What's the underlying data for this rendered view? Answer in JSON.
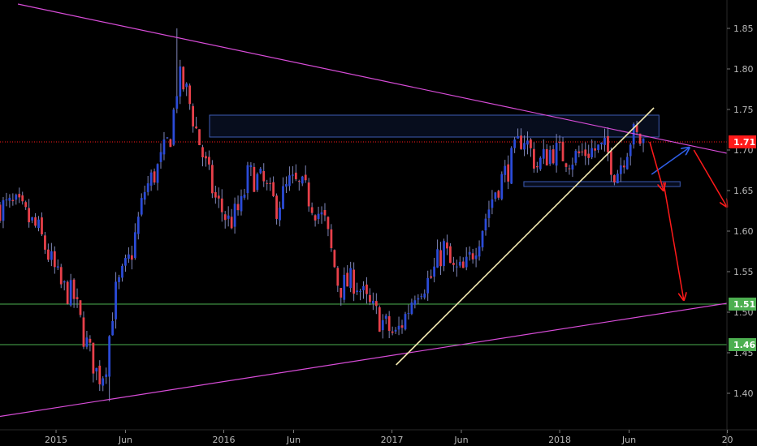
{
  "chart_data": {
    "type": "candlestick",
    "y_axis": {
      "min": 1.355,
      "max": 1.885,
      "ticks": [
        "1.85",
        "1.80",
        "1.75",
        "1.70",
        "1.65",
        "1.60",
        "1.55",
        "1.50",
        "1.45",
        "1.40"
      ],
      "side": "right"
    },
    "x_axis": {
      "start": "2014-09-01",
      "end": "2018-12-31",
      "ticks": [
        {
          "date": "2015-01-01",
          "label": "2015"
        },
        {
          "date": "2015-06-01",
          "label": "Jun"
        },
        {
          "date": "2016-01-01",
          "label": "2016"
        },
        {
          "date": "2016-06-01",
          "label": "Jun"
        },
        {
          "date": "2017-01-01",
          "label": "2017"
        },
        {
          "date": "2017-06-01",
          "label": "Jun"
        },
        {
          "date": "2018-01-01",
          "label": "2018"
        },
        {
          "date": "2018-06-01",
          "label": "Jun"
        },
        {
          "date": "2019-01-01",
          "label": "20"
        }
      ]
    },
    "colors": {
      "up": "#2b4bd8",
      "down": "#e8404a",
      "wick": "#7f86b8"
    },
    "price_path": [
      [
        "2014-09-01",
        1.63
      ],
      [
        "2014-10-15",
        1.63
      ],
      [
        "2014-12-01",
        1.6
      ],
      [
        "2015-01-20",
        1.53
      ],
      [
        "2015-02-15",
        1.52
      ],
      [
        "2015-03-10",
        1.47
      ],
      [
        "2015-04-10",
        1.42
      ],
      [
        "2015-04-25",
        1.43
      ],
      [
        "2015-05-15",
        1.52
      ],
      [
        "2015-06-20",
        1.57
      ],
      [
        "2015-07-20",
        1.65
      ],
      [
        "2015-08-20",
        1.68
      ],
      [
        "2015-09-15",
        1.72
      ],
      [
        "2015-10-01",
        1.79
      ],
      [
        "2015-10-20",
        1.77
      ],
      [
        "2015-11-20",
        1.7
      ],
      [
        "2015-12-20",
        1.64
      ],
      [
        "2016-01-20",
        1.61
      ],
      [
        "2016-02-15",
        1.63
      ],
      [
        "2016-03-01",
        1.67
      ],
      [
        "2016-04-01",
        1.66
      ],
      [
        "2016-05-01",
        1.63
      ],
      [
        "2016-06-01",
        1.66
      ],
      [
        "2016-07-01",
        1.65
      ],
      [
        "2016-08-15",
        1.61
      ],
      [
        "2016-09-15",
        1.53
      ],
      [
        "2016-10-20",
        1.54
      ],
      [
        "2016-11-15",
        1.51
      ],
      [
        "2016-12-15",
        1.49
      ],
      [
        "2017-01-15",
        1.47
      ],
      [
        "2017-02-10",
        1.5
      ],
      [
        "2017-03-01",
        1.53
      ],
      [
        "2017-04-01",
        1.54
      ],
      [
        "2017-05-01",
        1.58
      ],
      [
        "2017-05-20",
        1.55
      ],
      [
        "2017-06-15",
        1.55
      ],
      [
        "2017-07-20",
        1.6
      ],
      [
        "2017-08-20",
        1.65
      ],
      [
        "2017-09-20",
        1.68
      ],
      [
        "2017-10-20",
        1.72
      ],
      [
        "2017-11-20",
        1.68
      ],
      [
        "2017-12-20",
        1.7
      ],
      [
        "2018-02-01",
        1.69
      ],
      [
        "2018-03-15",
        1.7
      ],
      [
        "2018-04-20",
        1.7
      ],
      [
        "2018-05-10",
        1.67
      ],
      [
        "2018-05-25",
        1.69
      ],
      [
        "2018-06-15",
        1.72
      ],
      [
        "2018-07-05",
        1.71
      ]
    ],
    "price_events": [
      {
        "date": "2015-09-24",
        "high": 1.85
      },
      {
        "date": "2015-04-29",
        "low": 1.39
      }
    ],
    "horizontal_levels": [
      {
        "value": 1.71,
        "label": "1.71",
        "color": "#ff1a1a",
        "style": "dotted"
      },
      {
        "value": 1.51,
        "label": "1.51",
        "color": "#4caf50",
        "style": "solid"
      },
      {
        "value": 1.46,
        "label": "1.46",
        "color": "#4caf50",
        "style": "solid"
      }
    ],
    "zones": [
      {
        "x0": "2015-12-01",
        "x1": "2018-08-05",
        "y0": 1.716,
        "y1": 1.743
      },
      {
        "x0": "2017-10-15",
        "x1": "2018-09-20",
        "y0": 1.655,
        "y1": 1.661
      }
    ],
    "trendlines": [
      {
        "p1": [
          "2014-10-10",
          1.88
        ],
        "p2": [
          "2018-12-31",
          1.696
        ],
        "color": "#d84cd8",
        "width": 1.2
      },
      {
        "p1": [
          "2014-08-15",
          1.37
        ],
        "p2": [
          "2018-12-31",
          1.511
        ],
        "color": "#d84cd8",
        "width": 1.2
      },
      {
        "p1": [
          "2017-01-10",
          1.435
        ],
        "p2": [
          "2018-07-25",
          1.752
        ],
        "color": "#f2e8b0",
        "width": 1.6
      }
    ],
    "arrows": [
      {
        "p1": [
          "2018-07-20",
          1.67
        ],
        "p2": [
          "2018-10-10",
          1.703
        ],
        "color": "#2f5fe8"
      },
      {
        "p1": [
          "2018-07-16",
          1.71
        ],
        "p2": [
          "2018-08-15",
          1.65
        ],
        "color": "#ff1a1a"
      },
      {
        "p1": [
          "2018-08-15",
          1.66
        ],
        "p2": [
          "2018-09-28",
          1.515
        ],
        "color": "#ff1a1a"
      },
      {
        "p1": [
          "2018-10-20",
          1.7
        ],
        "p2": [
          "2018-12-31",
          1.63
        ],
        "color": "#ff1a1a"
      }
    ]
  }
}
